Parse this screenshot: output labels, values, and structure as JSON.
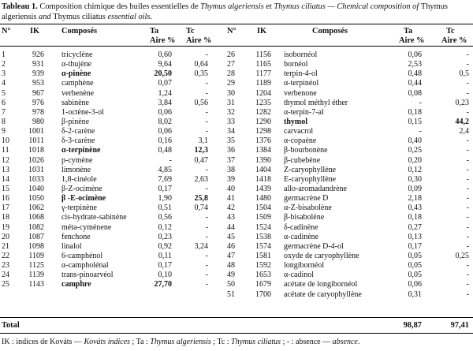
{
  "caption": {
    "label": "Tableau 1.",
    "text_fr_1": " Composition chimique des huiles essentielles de ",
    "species_1": "Thymus algeriensis",
    "text_fr_2": " et ",
    "species_2": "Thymus ciliatus",
    "text_en_1": " — Chemical composition of ",
    "species_3": "Thymus algeriensis",
    "text_en_2": " and ",
    "species_4": "Thymus ciliatus",
    "text_en_3": " essential oils",
    "end": "."
  },
  "headers": {
    "num": "N°",
    "ik": "IK",
    "compounds": "Composés",
    "ta_1": "Ta",
    "ta_2": "Aire %",
    "tc_1": "Tc",
    "tc_2": "Aire %"
  },
  "left_rows": [
    {
      "n": "1",
      "ik": "926",
      "name": "tricyclène",
      "ta": "0,60",
      "tc": "-"
    },
    {
      "n": "2",
      "ik": "931",
      "name": "α-thujène",
      "ta": "9,64",
      "tc": "0,64"
    },
    {
      "n": "3",
      "ik": "939",
      "name": "α-pinène",
      "ta": "20,50",
      "tc": "0,35",
      "bold": true,
      "bold_ta": true
    },
    {
      "n": "4",
      "ik": "953",
      "name": "camphène",
      "ta": "0,07",
      "tc": "-"
    },
    {
      "n": "5",
      "ik": "967",
      "name": "verbenène",
      "ta": "1,24",
      "tc": "-"
    },
    {
      "n": "6",
      "ik": "976",
      "name": "sabinène",
      "ta": "3,84",
      "tc": "0,56"
    },
    {
      "n": "7",
      "ik": "978",
      "name": "1-octène-3-ol",
      "ta": "0,06",
      "tc": "-"
    },
    {
      "n": "8",
      "ik": "980",
      "name": "β-pinène",
      "ta": "8,02",
      "tc": "-"
    },
    {
      "n": "9",
      "ik": "1001",
      "name": "δ-2-carène",
      "ta": "0,06",
      "tc": "-"
    },
    {
      "n": "10",
      "ik": "1011",
      "name": "δ-3-carène",
      "ta": "0,16",
      "tc": "3,1"
    },
    {
      "n": "11",
      "ik": "1018",
      "name": "α-terpinène",
      "ta": "0,48",
      "tc": "12,3",
      "bold": true,
      "bold_tc": true
    },
    {
      "n": "12",
      "ik": "1026",
      "name": "p-cymène",
      "ta": "-",
      "tc": "0,47"
    },
    {
      "n": "13",
      "ik": "1031",
      "name": "limonène",
      "ta": "4,85",
      "tc": "-"
    },
    {
      "n": "14",
      "ik": "1033",
      "name": "1,8-cinéole",
      "ta": "7,69",
      "tc": "2,63"
    },
    {
      "n": "15",
      "ik": "1040",
      "name": "β-Z-ocimène",
      "ta": "0,17",
      "tc": "-"
    },
    {
      "n": "16",
      "ik": "1050",
      "name": "β -E-ocimène",
      "ta": "1,90",
      "tc": "25,8",
      "bold": true,
      "bold_tc": true
    },
    {
      "n": "17",
      "ik": "1062",
      "name": "γ-terpinène",
      "ta": "0,51",
      "tc": "0,74"
    },
    {
      "n": "18",
      "ik": "1068",
      "name": "cis-hydrate-sabinène",
      "ta": "0,56",
      "tc": "-"
    },
    {
      "n": "19",
      "ik": "1082",
      "name": "méta-cymènene",
      "ta": "0,12",
      "tc": "-"
    },
    {
      "n": "20",
      "ik": "1087",
      "name": "fenchone",
      "ta": "0,23",
      "tc": "-"
    },
    {
      "n": "21",
      "ik": "1098",
      "name": "linalol",
      "ta": "0,92",
      "tc": "3,24"
    },
    {
      "n": "22",
      "ik": "1109",
      "name": "6-camphénol",
      "ta": "0,11",
      "tc": "-"
    },
    {
      "n": "23",
      "ik": "1125",
      "name": "α-campholénal",
      "ta": "0,17",
      "tc": "-"
    },
    {
      "n": "24",
      "ik": "1139",
      "name": "trans-pinoarvéol",
      "ta": "0,10",
      "tc": "-"
    },
    {
      "n": "25",
      "ik": "1143",
      "name": "camphre",
      "ta": "27,70",
      "tc": "-",
      "bold": true,
      "bold_ta": true
    }
  ],
  "right_rows": [
    {
      "n": "26",
      "ik": "1156",
      "name": "isobornéol",
      "ta": "0,06",
      "tc": "-"
    },
    {
      "n": "27",
      "ik": "1165",
      "name": "bornéol",
      "ta": "2,53",
      "tc": "-"
    },
    {
      "n": "28",
      "ik": "1177",
      "name": "terpin-4-ol",
      "ta": "0,48",
      "tc": "0,5"
    },
    {
      "n": "29",
      "ik": "1189",
      "name": "α-terpinéol",
      "ta": "0,44",
      "tc": "-"
    },
    {
      "n": "30",
      "ik": "1204",
      "name": "verbenone",
      "ta": "0,08",
      "tc": "-"
    },
    {
      "n": "31",
      "ik": "1235",
      "name": "thymol méthyl éther",
      "ta": "-",
      "tc": "0,23"
    },
    {
      "n": "32",
      "ik": "1282",
      "name": "α-terpin-7-al",
      "ta": "0,18",
      "tc": "-"
    },
    {
      "n": "33",
      "ik": "1290",
      "name": "thymol",
      "ta": "0,15",
      "tc": "44,2",
      "bold": true,
      "bold_tc": true
    },
    {
      "n": "34",
      "ik": "1298",
      "name": "carvacrol",
      "ta": "-",
      "tc": "2,4"
    },
    {
      "n": "35",
      "ik": "1376",
      "name": "α-copaène",
      "ta": "0,40",
      "tc": "-"
    },
    {
      "n": "36",
      "ik": "1384",
      "name": "β-bourbonène",
      "ta": "0,25",
      "tc": "-"
    },
    {
      "n": "37",
      "ik": "1390",
      "name": "β-cubebène",
      "ta": "0,20",
      "tc": "-"
    },
    {
      "n": "38",
      "ik": "1404",
      "name": "Z-caryophyllène",
      "ta": "0,12",
      "tc": "-"
    },
    {
      "n": "39",
      "ik": "1418",
      "name": "E-caryophyllène",
      "ta": "0,30",
      "tc": "-"
    },
    {
      "n": "40",
      "ik": "1439",
      "name": "allo-aromadandrène",
      "ta": "0,09",
      "tc": "-"
    },
    {
      "n": "41",
      "ik": "1480",
      "name": "germacrène D",
      "ta": "2,18",
      "tc": "-"
    },
    {
      "n": "42",
      "ik": "1504",
      "name": "α-Z-bisabolène",
      "ta": "0,43",
      "tc": "-"
    },
    {
      "n": "43",
      "ik": "1509",
      "name": "β-bisabolène",
      "ta": "0,18",
      "tc": "-"
    },
    {
      "n": "44",
      "ik": "1524",
      "name": "δ-cadinène",
      "ta": "0,27",
      "tc": "-"
    },
    {
      "n": "45",
      "ik": "1538",
      "name": "α-cadinène",
      "ta": "0,13",
      "tc": "-"
    },
    {
      "n": "46",
      "ik": "1574",
      "name": "germacrène D-4-ol",
      "ta": "0,17",
      "tc": "-"
    },
    {
      "n": "47",
      "ik": "1581",
      "name": "oxyde de caryophyllène",
      "ta": "0,05",
      "tc": "0,25"
    },
    {
      "n": "48",
      "ik": "1592",
      "name": "longibornéol",
      "ta": "0,05",
      "tc": "-"
    },
    {
      "n": "49",
      "ik": "1653",
      "name": "α-cadinol",
      "ta": "0,05",
      "tc": "-"
    },
    {
      "n": "50",
      "ik": "1679",
      "name": "acétate de longibornéol",
      "ta": "0,06",
      "tc": "-"
    },
    {
      "n": "51",
      "ik": "1700",
      "name": "acétate de caryophyllène",
      "ta": "0,31",
      "tc": "-"
    }
  ],
  "total": {
    "label": "Total",
    "ta": "98,87",
    "tc": "97,41"
  },
  "footnote": {
    "ik_label": "IK : indices de Kováts — ",
    "ik_en": "Kováts indices",
    "ta_label": " ; Ta : ",
    "ta_species": "Thymus algeriensis",
    "tc_label": " ; Tc : ",
    "tc_species": "Thymus ciliatus",
    "absence_label": " ; - : absence — ",
    "absence_en": "absence",
    "end": "."
  }
}
